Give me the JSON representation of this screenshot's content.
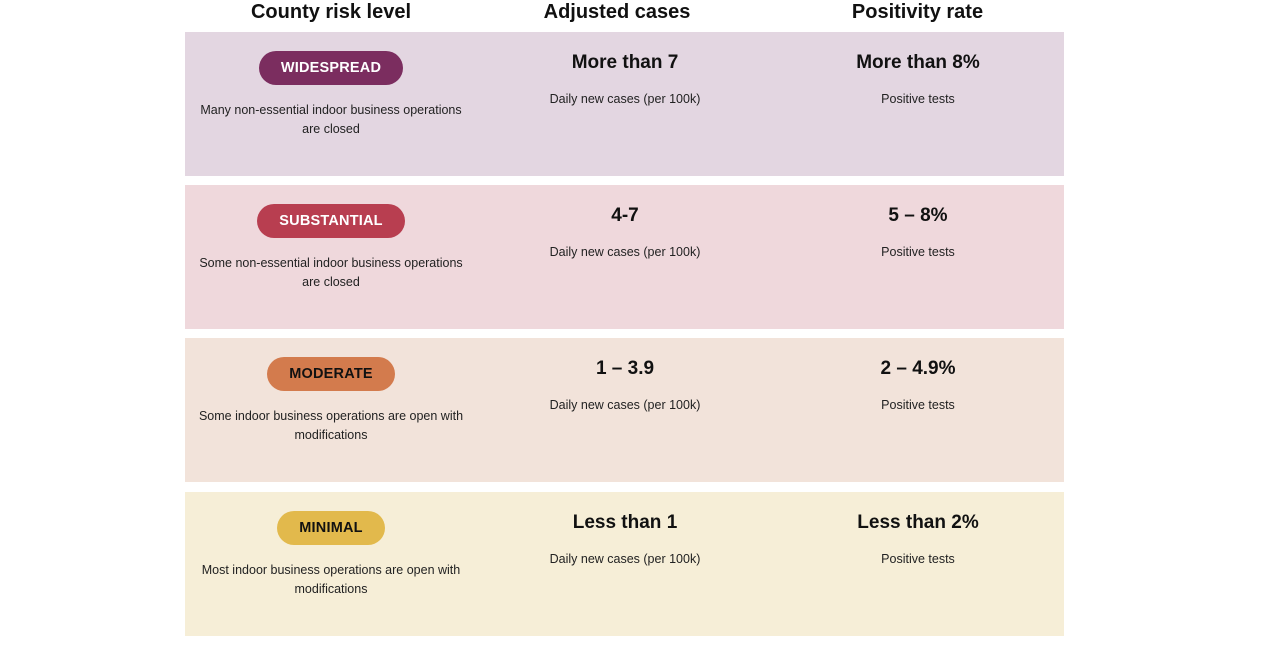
{
  "headers": {
    "risk_level": "County risk level",
    "adjusted_cases": "Adjusted cases",
    "positivity_rate": "Positivity rate"
  },
  "tiers": [
    {
      "label": "WIDESPREAD",
      "description": "Many non-essential indoor business operations are closed",
      "cases": "More than 7",
      "cases_sub": "Daily new cases (per 100k)",
      "positivity": "More than 8%",
      "positivity_sub": "Positive tests",
      "badge_color": "#7b2d5f",
      "badge_text_color": "#ffffff",
      "row_color": "#e3d6e1"
    },
    {
      "label": "SUBSTANTIAL",
      "description": "Some non-essential indoor business operations are closed",
      "cases": "4-7",
      "cases_sub": "Daily new cases (per 100k)",
      "positivity": "5 – 8%",
      "positivity_sub": "Positive tests",
      "badge_color": "#b83e50",
      "badge_text_color": "#ffffff",
      "row_color": "#efd8dc"
    },
    {
      "label": "MODERATE",
      "description": "Some indoor business operations are open with modifications",
      "cases": "1 – 3.9",
      "cases_sub": "Daily new cases (per 100k)",
      "positivity": "2 – 4.9%",
      "positivity_sub": "Positive tests",
      "badge_color": "#d37b4d",
      "badge_text_color": "#111111",
      "row_color": "#f2e3da"
    },
    {
      "label": "MINIMAL",
      "description": "Most indoor business operations are open with modifications",
      "cases": "Less than 1",
      "cases_sub": "Daily new cases (per 100k)",
      "positivity": "Less than 2%",
      "positivity_sub": "Positive tests",
      "badge_color": "#e2b94c",
      "badge_text_color": "#111111",
      "row_color": "#f6eed7"
    }
  ]
}
